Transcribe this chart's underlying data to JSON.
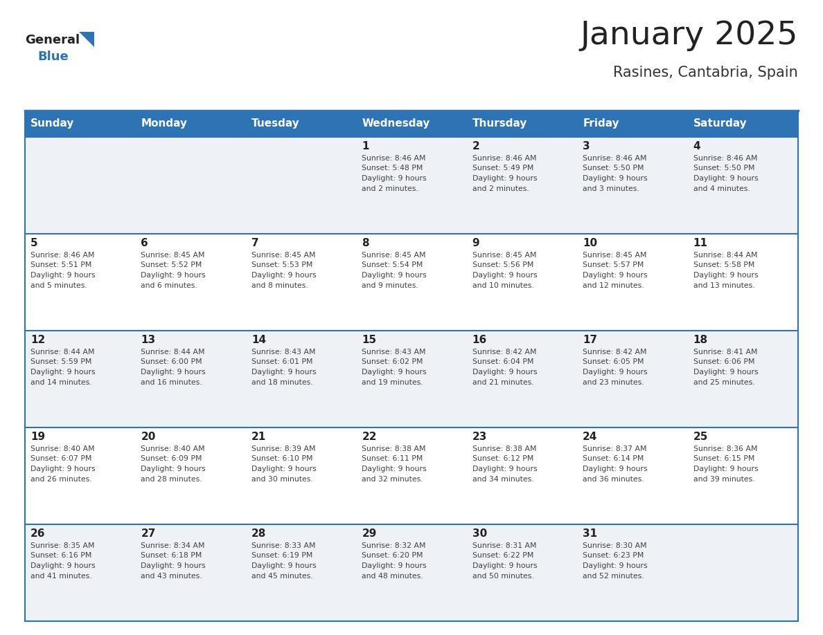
{
  "title": "January 2025",
  "subtitle": "Rasines, Cantabria, Spain",
  "days_of_week": [
    "Sunday",
    "Monday",
    "Tuesday",
    "Wednesday",
    "Thursday",
    "Friday",
    "Saturday"
  ],
  "header_bg": "#2E74B5",
  "header_text": "#FFFFFF",
  "row_bg_odd": "#EEF2F7",
  "row_bg_even": "#FFFFFF",
  "day_num_color": "#222222",
  "info_text_color": "#404040",
  "border_color": "#2E74B5",
  "title_color": "#222222",
  "subtitle_color": "#333333",
  "logo_general_color": "#222222",
  "logo_blue_color": "#2E74B5",
  "logo_triangle_color": "#2E74B5",
  "calendar": [
    [
      {
        "day": "",
        "sunrise": "",
        "sunset": "",
        "daylight": ""
      },
      {
        "day": "",
        "sunrise": "",
        "sunset": "",
        "daylight": ""
      },
      {
        "day": "",
        "sunrise": "",
        "sunset": "",
        "daylight": ""
      },
      {
        "day": "1",
        "sunrise": "8:46 AM",
        "sunset": "5:48 PM",
        "daylight": "9 hours and 2 minutes."
      },
      {
        "day": "2",
        "sunrise": "8:46 AM",
        "sunset": "5:49 PM",
        "daylight": "9 hours and 2 minutes."
      },
      {
        "day": "3",
        "sunrise": "8:46 AM",
        "sunset": "5:50 PM",
        "daylight": "9 hours and 3 minutes."
      },
      {
        "day": "4",
        "sunrise": "8:46 AM",
        "sunset": "5:50 PM",
        "daylight": "9 hours and 4 minutes."
      }
    ],
    [
      {
        "day": "5",
        "sunrise": "8:46 AM",
        "sunset": "5:51 PM",
        "daylight": "9 hours and 5 minutes."
      },
      {
        "day": "6",
        "sunrise": "8:45 AM",
        "sunset": "5:52 PM",
        "daylight": "9 hours and 6 minutes."
      },
      {
        "day": "7",
        "sunrise": "8:45 AM",
        "sunset": "5:53 PM",
        "daylight": "9 hours and 8 minutes."
      },
      {
        "day": "8",
        "sunrise": "8:45 AM",
        "sunset": "5:54 PM",
        "daylight": "9 hours and 9 minutes."
      },
      {
        "day": "9",
        "sunrise": "8:45 AM",
        "sunset": "5:56 PM",
        "daylight": "9 hours and 10 minutes."
      },
      {
        "day": "10",
        "sunrise": "8:45 AM",
        "sunset": "5:57 PM",
        "daylight": "9 hours and 12 minutes."
      },
      {
        "day": "11",
        "sunrise": "8:44 AM",
        "sunset": "5:58 PM",
        "daylight": "9 hours and 13 minutes."
      }
    ],
    [
      {
        "day": "12",
        "sunrise": "8:44 AM",
        "sunset": "5:59 PM",
        "daylight": "9 hours and 14 minutes."
      },
      {
        "day": "13",
        "sunrise": "8:44 AM",
        "sunset": "6:00 PM",
        "daylight": "9 hours and 16 minutes."
      },
      {
        "day": "14",
        "sunrise": "8:43 AM",
        "sunset": "6:01 PM",
        "daylight": "9 hours and 18 minutes."
      },
      {
        "day": "15",
        "sunrise": "8:43 AM",
        "sunset": "6:02 PM",
        "daylight": "9 hours and 19 minutes."
      },
      {
        "day": "16",
        "sunrise": "8:42 AM",
        "sunset": "6:04 PM",
        "daylight": "9 hours and 21 minutes."
      },
      {
        "day": "17",
        "sunrise": "8:42 AM",
        "sunset": "6:05 PM",
        "daylight": "9 hours and 23 minutes."
      },
      {
        "day": "18",
        "sunrise": "8:41 AM",
        "sunset": "6:06 PM",
        "daylight": "9 hours and 25 minutes."
      }
    ],
    [
      {
        "day": "19",
        "sunrise": "8:40 AM",
        "sunset": "6:07 PM",
        "daylight": "9 hours and 26 minutes."
      },
      {
        "day": "20",
        "sunrise": "8:40 AM",
        "sunset": "6:09 PM",
        "daylight": "9 hours and 28 minutes."
      },
      {
        "day": "21",
        "sunrise": "8:39 AM",
        "sunset": "6:10 PM",
        "daylight": "9 hours and 30 minutes."
      },
      {
        "day": "22",
        "sunrise": "8:38 AM",
        "sunset": "6:11 PM",
        "daylight": "9 hours and 32 minutes."
      },
      {
        "day": "23",
        "sunrise": "8:38 AM",
        "sunset": "6:12 PM",
        "daylight": "9 hours and 34 minutes."
      },
      {
        "day": "24",
        "sunrise": "8:37 AM",
        "sunset": "6:14 PM",
        "daylight": "9 hours and 36 minutes."
      },
      {
        "day": "25",
        "sunrise": "8:36 AM",
        "sunset": "6:15 PM",
        "daylight": "9 hours and 39 minutes."
      }
    ],
    [
      {
        "day": "26",
        "sunrise": "8:35 AM",
        "sunset": "6:16 PM",
        "daylight": "9 hours and 41 minutes."
      },
      {
        "day": "27",
        "sunrise": "8:34 AM",
        "sunset": "6:18 PM",
        "daylight": "9 hours and 43 minutes."
      },
      {
        "day": "28",
        "sunrise": "8:33 AM",
        "sunset": "6:19 PM",
        "daylight": "9 hours and 45 minutes."
      },
      {
        "day": "29",
        "sunrise": "8:32 AM",
        "sunset": "6:20 PM",
        "daylight": "9 hours and 48 minutes."
      },
      {
        "day": "30",
        "sunrise": "8:31 AM",
        "sunset": "6:22 PM",
        "daylight": "9 hours and 50 minutes."
      },
      {
        "day": "31",
        "sunrise": "8:30 AM",
        "sunset": "6:23 PM",
        "daylight": "9 hours and 52 minutes."
      },
      {
        "day": "",
        "sunrise": "",
        "sunset": "",
        "daylight": ""
      }
    ]
  ],
  "figwidth": 11.88,
  "figheight": 9.18,
  "dpi": 100
}
